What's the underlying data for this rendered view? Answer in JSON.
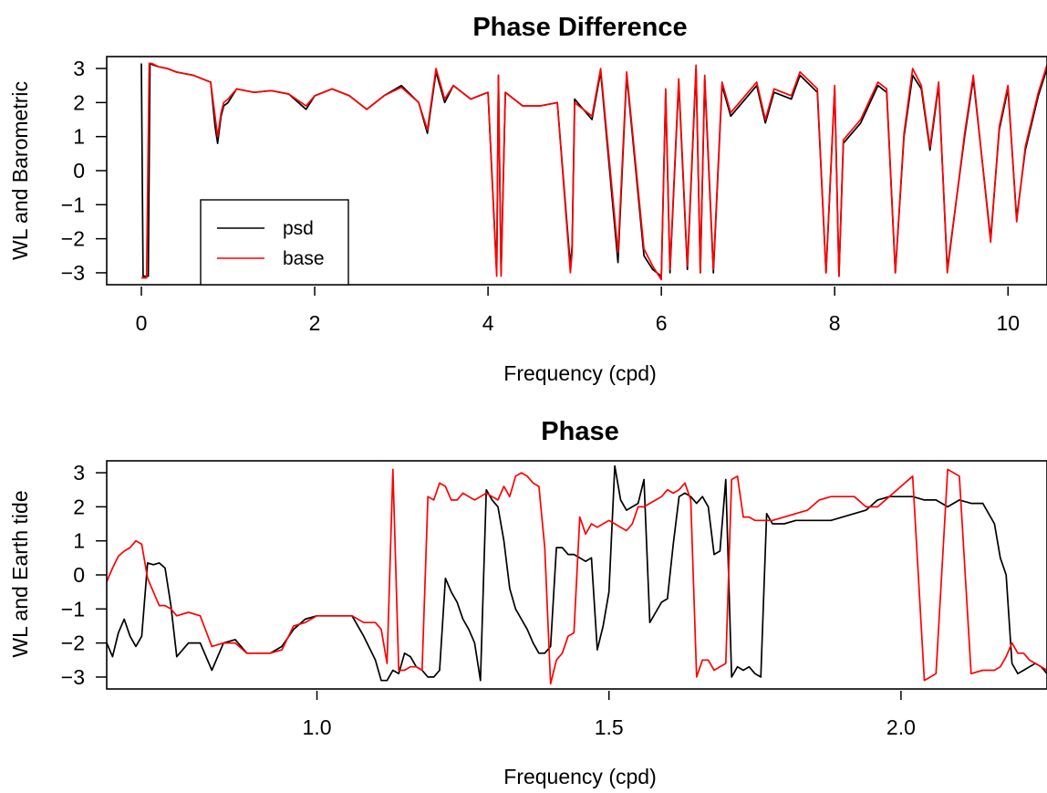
{
  "chart_data": [
    {
      "type": "line",
      "title": "Phase Difference",
      "xlabel": "Frequency (cpd)",
      "ylabel": "WL and Barometric",
      "xlim": [
        -0.4,
        10.45
      ],
      "ylim": [
        -3.35,
        3.35
      ],
      "x_ticks": [
        0,
        2,
        4,
        6,
        8,
        10
      ],
      "x_tick_labels": [
        "0",
        "2",
        "4",
        "6",
        "8",
        "10"
      ],
      "y_ticks": [
        3,
        2,
        1,
        0,
        -1,
        -2,
        -3
      ],
      "y_tick_labels": [
        "3",
        "2",
        "1",
        "0",
        "−1",
        "−2",
        "−3"
      ],
      "legend": {
        "position": "bottom-left",
        "entries": [
          {
            "label": "psd",
            "color": "#000000"
          },
          {
            "label": "base",
            "color": "#ff0000"
          }
        ]
      },
      "grid": false,
      "series": [
        {
          "name": "psd",
          "color": "#000000",
          "x": [
            0.0,
            0.02,
            0.05,
            0.08,
            0.1,
            0.14,
            0.2,
            0.3,
            0.4,
            0.5,
            0.6,
            0.7,
            0.8,
            0.85,
            0.88,
            0.92,
            0.95,
            1.0,
            1.1,
            1.3,
            1.5,
            1.7,
            1.9,
            2.0,
            2.2,
            2.4,
            2.6,
            2.8,
            3.0,
            3.2,
            3.3,
            3.4,
            3.5,
            3.6,
            3.8,
            4.0,
            4.1,
            4.12,
            4.15,
            4.2,
            4.4,
            4.6,
            4.8,
            4.95,
            4.97,
            5.0,
            5.2,
            5.3,
            5.5,
            5.6,
            5.8,
            5.9,
            6.0,
            6.05,
            6.1,
            6.2,
            6.3,
            6.4,
            6.45,
            6.5,
            6.6,
            6.7,
            6.8,
            7.0,
            7.1,
            7.2,
            7.3,
            7.5,
            7.6,
            7.8,
            7.9,
            8.0,
            8.05,
            8.1,
            8.3,
            8.5,
            8.6,
            8.7,
            8.8,
            8.9,
            9.0,
            9.1,
            9.2,
            9.3,
            9.5,
            9.6,
            9.8,
            9.9,
            10.0,
            10.1,
            10.2,
            10.35,
            10.45
          ],
          "y": [
            3.15,
            -3.1,
            -3.1,
            -3.1,
            3.15,
            3.1,
            3.05,
            3.0,
            2.9,
            2.85,
            2.8,
            2.7,
            2.6,
            1.3,
            0.8,
            1.6,
            1.9,
            2.0,
            2.4,
            2.3,
            2.35,
            2.25,
            1.8,
            2.2,
            2.4,
            2.2,
            1.8,
            2.2,
            2.5,
            2.0,
            1.1,
            2.9,
            2.0,
            2.5,
            2.1,
            2.3,
            -3.0,
            2.8,
            -3.05,
            2.3,
            1.9,
            1.9,
            2.0,
            -2.8,
            -2.2,
            2.1,
            1.5,
            2.9,
            -2.7,
            2.8,
            -2.5,
            -2.9,
            -3.1,
            2.3,
            -3.0,
            2.6,
            -2.9,
            3.0,
            -3.0,
            2.7,
            -3.0,
            2.5,
            1.6,
            2.2,
            2.5,
            1.4,
            2.3,
            2.1,
            2.8,
            2.3,
            -3.0,
            2.4,
            -3.1,
            0.8,
            1.4,
            2.5,
            2.3,
            -3.0,
            1.0,
            2.8,
            2.4,
            0.6,
            2.5,
            -2.9,
            1.0,
            2.7,
            -2.0,
            1.2,
            2.4,
            -1.4,
            0.6,
            2.2,
            3.0
          ]
        },
        {
          "name": "base",
          "color": "#ff0000",
          "x": [
            0.0,
            0.03,
            0.06,
            0.09,
            0.12,
            0.2,
            0.3,
            0.4,
            0.5,
            0.6,
            0.7,
            0.8,
            0.85,
            0.88,
            0.92,
            0.95,
            1.0,
            1.1,
            1.3,
            1.5,
            1.7,
            1.9,
            2.0,
            2.2,
            2.4,
            2.6,
            2.8,
            3.0,
            3.2,
            3.3,
            3.4,
            3.5,
            3.6,
            3.8,
            4.0,
            4.1,
            4.12,
            4.15,
            4.2,
            4.4,
            4.6,
            4.8,
            4.95,
            4.97,
            5.0,
            5.2,
            5.3,
            5.5,
            5.6,
            5.8,
            5.9,
            6.0,
            6.05,
            6.1,
            6.2,
            6.3,
            6.4,
            6.45,
            6.5,
            6.6,
            6.7,
            6.8,
            7.0,
            7.1,
            7.2,
            7.3,
            7.5,
            7.6,
            7.8,
            7.9,
            8.0,
            8.05,
            8.1,
            8.3,
            8.5,
            8.6,
            8.7,
            8.8,
            8.9,
            9.0,
            9.1,
            9.2,
            9.3,
            9.5,
            9.6,
            9.8,
            9.9,
            10.0,
            10.1,
            10.2,
            10.35,
            10.45
          ],
          "y": [
            -3.15,
            -3.15,
            -3.15,
            3.15,
            3.15,
            3.05,
            3.0,
            2.9,
            2.85,
            2.8,
            2.7,
            2.6,
            1.6,
            1.0,
            1.7,
            2.0,
            2.1,
            2.4,
            2.3,
            2.35,
            2.25,
            1.9,
            2.2,
            2.4,
            2.2,
            1.8,
            2.2,
            2.45,
            2.0,
            1.2,
            3.0,
            2.1,
            2.5,
            2.1,
            2.3,
            -3.1,
            2.8,
            -3.1,
            2.3,
            1.9,
            1.9,
            2.0,
            -3.0,
            -2.4,
            2.0,
            1.6,
            3.0,
            -2.4,
            2.9,
            -2.3,
            -2.8,
            -3.2,
            2.4,
            -2.9,
            2.7,
            -2.8,
            3.1,
            -3.0,
            2.8,
            -2.9,
            2.6,
            1.7,
            2.3,
            2.6,
            1.5,
            2.4,
            2.2,
            2.9,
            2.4,
            -3.0,
            2.5,
            -3.1,
            0.9,
            1.5,
            2.6,
            2.4,
            -3.0,
            1.1,
            3.0,
            2.5,
            0.7,
            2.6,
            -3.0,
            1.1,
            2.8,
            -2.1,
            1.3,
            2.5,
            -1.5,
            0.7,
            2.3,
            3.1
          ]
        }
      ]
    },
    {
      "type": "line",
      "title": "Phase",
      "xlabel": "Frequency (cpd)",
      "ylabel": "WL and Earth tide",
      "xlim": [
        0.64,
        2.25
      ],
      "ylim": [
        -3.35,
        3.35
      ],
      "x_ticks": [
        1.0,
        1.5,
        2.0
      ],
      "x_tick_labels": [
        "1.0",
        "1.5",
        "2.0"
      ],
      "y_ticks": [
        3,
        2,
        1,
        0,
        -1,
        -2,
        -3
      ],
      "y_tick_labels": [
        "3",
        "2",
        "1",
        "0",
        "−1",
        "−2",
        "−3"
      ],
      "grid": false,
      "series": [
        {
          "name": "",
          "color": "#000000",
          "x": [
            0.64,
            0.65,
            0.66,
            0.67,
            0.68,
            0.69,
            0.7,
            0.71,
            0.72,
            0.73,
            0.74,
            0.75,
            0.76,
            0.78,
            0.8,
            0.82,
            0.84,
            0.86,
            0.88,
            0.9,
            0.92,
            0.94,
            0.96,
            0.98,
            1.0,
            1.02,
            1.04,
            1.06,
            1.08,
            1.1,
            1.11,
            1.12,
            1.13,
            1.14,
            1.15,
            1.16,
            1.17,
            1.18,
            1.19,
            1.2,
            1.21,
            1.22,
            1.23,
            1.24,
            1.25,
            1.26,
            1.27,
            1.28,
            1.29,
            1.3,
            1.31,
            1.32,
            1.33,
            1.34,
            1.35,
            1.36,
            1.37,
            1.38,
            1.39,
            1.4,
            1.41,
            1.42,
            1.43,
            1.44,
            1.45,
            1.46,
            1.47,
            1.48,
            1.49,
            1.5,
            1.51,
            1.52,
            1.53,
            1.54,
            1.55,
            1.56,
            1.57,
            1.58,
            1.59,
            1.6,
            1.61,
            1.62,
            1.63,
            1.64,
            1.65,
            1.66,
            1.67,
            1.68,
            1.69,
            1.7,
            1.71,
            1.72,
            1.73,
            1.74,
            1.75,
            1.76,
            1.77,
            1.78,
            1.8,
            1.82,
            1.84,
            1.86,
            1.88,
            1.9,
            1.92,
            1.94,
            1.96,
            1.98,
            2.0,
            2.02,
            2.04,
            2.06,
            2.08,
            2.1,
            2.12,
            2.14,
            2.16,
            2.17,
            2.18,
            2.19,
            2.2,
            2.21,
            2.22,
            2.23,
            2.24,
            2.25
          ],
          "y": [
            -2.0,
            -2.4,
            -1.7,
            -1.3,
            -1.8,
            -2.1,
            -1.8,
            0.35,
            0.3,
            0.35,
            0.2,
            -0.9,
            -2.4,
            -2.0,
            -2.0,
            -2.8,
            -2.0,
            -1.9,
            -2.3,
            -2.3,
            -2.3,
            -2.1,
            -1.6,
            -1.3,
            -1.2,
            -1.2,
            -1.2,
            -1.2,
            -1.8,
            -2.5,
            -3.1,
            -3.1,
            -2.8,
            -2.9,
            -2.3,
            -2.4,
            -2.7,
            -2.8,
            -3.0,
            -3.0,
            -2.8,
            -0.1,
            -0.5,
            -0.8,
            -1.3,
            -1.6,
            -2.0,
            -3.1,
            2.5,
            2.2,
            2.0,
            1.0,
            -0.4,
            -1.0,
            -1.3,
            -1.6,
            -2.0,
            -2.3,
            -2.3,
            -2.1,
            0.8,
            0.8,
            0.6,
            0.6,
            0.5,
            0.4,
            0.5,
            -2.2,
            -1.5,
            -0.5,
            3.2,
            2.2,
            1.9,
            2.0,
            2.1,
            2.8,
            -1.4,
            -1.1,
            -0.8,
            -0.7,
            0.9,
            2.3,
            2.4,
            2.3,
            2.1,
            2.3,
            2.0,
            0.6,
            0.7,
            2.8,
            -3.0,
            -2.7,
            -2.8,
            -2.7,
            -2.9,
            -3.0,
            1.8,
            1.5,
            1.5,
            1.6,
            1.6,
            1.6,
            1.6,
            1.7,
            1.8,
            1.9,
            2.2,
            2.3,
            2.3,
            2.3,
            2.2,
            2.2,
            2.0,
            2.2,
            2.1,
            2.1,
            1.5,
            0.5,
            0.0,
            -2.6,
            -2.9,
            -2.8,
            -2.7,
            -2.6,
            -2.7,
            -2.9
          ]
        },
        {
          "name": "",
          "color": "#ff0000",
          "x": [
            0.64,
            0.65,
            0.66,
            0.67,
            0.68,
            0.69,
            0.7,
            0.71,
            0.72,
            0.73,
            0.74,
            0.75,
            0.76,
            0.78,
            0.8,
            0.82,
            0.84,
            0.86,
            0.88,
            0.9,
            0.92,
            0.94,
            0.96,
            0.98,
            1.0,
            1.02,
            1.04,
            1.06,
            1.08,
            1.1,
            1.11,
            1.12,
            1.13,
            1.14,
            1.15,
            1.16,
            1.17,
            1.18,
            1.19,
            1.2,
            1.21,
            1.22,
            1.23,
            1.24,
            1.25,
            1.26,
            1.27,
            1.28,
            1.29,
            1.3,
            1.31,
            1.32,
            1.33,
            1.34,
            1.35,
            1.36,
            1.37,
            1.38,
            1.39,
            1.4,
            1.41,
            1.42,
            1.43,
            1.44,
            1.45,
            1.46,
            1.47,
            1.48,
            1.49,
            1.5,
            1.51,
            1.52,
            1.53,
            1.54,
            1.55,
            1.56,
            1.57,
            1.58,
            1.59,
            1.6,
            1.61,
            1.62,
            1.63,
            1.64,
            1.65,
            1.66,
            1.67,
            1.68,
            1.69,
            1.7,
            1.71,
            1.72,
            1.73,
            1.74,
            1.75,
            1.76,
            1.77,
            1.78,
            1.8,
            1.82,
            1.84,
            1.86,
            1.88,
            1.9,
            1.92,
            1.94,
            1.96,
            1.98,
            2.0,
            2.02,
            2.04,
            2.06,
            2.08,
            2.1,
            2.12,
            2.14,
            2.16,
            2.17,
            2.18,
            2.19,
            2.2,
            2.21,
            2.22,
            2.23,
            2.24,
            2.25
          ],
          "y": [
            -0.2,
            0.2,
            0.55,
            0.7,
            0.8,
            1.0,
            0.9,
            -0.1,
            -0.5,
            -0.9,
            -0.9,
            -1.0,
            -1.2,
            -1.1,
            -1.2,
            -2.1,
            -2.0,
            -2.0,
            -2.3,
            -2.3,
            -2.3,
            -2.2,
            -1.5,
            -1.4,
            -1.2,
            -1.2,
            -1.2,
            -1.2,
            -1.4,
            -1.4,
            -1.6,
            -2.6,
            3.1,
            -2.8,
            -2.8,
            -2.7,
            -2.7,
            -2.8,
            2.3,
            2.2,
            2.7,
            2.6,
            2.2,
            2.2,
            2.4,
            2.3,
            2.2,
            2.3,
            2.4,
            2.3,
            2.2,
            2.6,
            2.3,
            2.9,
            3.0,
            2.9,
            2.7,
            2.6,
            0.8,
            -3.2,
            -2.5,
            -2.3,
            -1.8,
            -1.7,
            1.7,
            1.2,
            1.5,
            1.4,
            1.5,
            1.6,
            1.5,
            1.4,
            1.3,
            1.5,
            2.0,
            2.0,
            2.1,
            2.2,
            2.3,
            2.5,
            2.4,
            2.5,
            2.7,
            2.2,
            -3.0,
            -2.5,
            -2.5,
            -2.8,
            -2.7,
            -2.6,
            2.8,
            2.9,
            1.7,
            1.7,
            1.6,
            1.6,
            1.6,
            1.6,
            1.7,
            1.8,
            1.9,
            2.2,
            2.3,
            2.3,
            2.3,
            2.0,
            2.0,
            2.3,
            2.6,
            2.9,
            -3.1,
            -2.9,
            3.1,
            2.9,
            -2.9,
            -2.8,
            -2.8,
            -2.7,
            -2.4,
            -2.0,
            -2.3,
            -2.3,
            -2.5,
            -2.6,
            -2.7,
            -2.8
          ]
        }
      ]
    }
  ]
}
